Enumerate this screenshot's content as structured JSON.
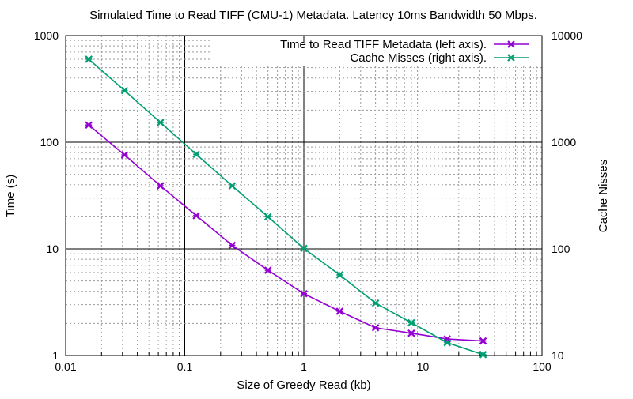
{
  "chart_data": {
    "type": "line",
    "title": "Simulated Time to Read TIFF (CMU-1) Metadata. Latency 10ms Bandwidth 50 Mbps.",
    "xlabel": "Size of Greedy Read (kb)",
    "ylabel": "Time (s)",
    "y2label": "Cache Nisses",
    "xscale": "log",
    "yscale": "log",
    "y2scale": "log",
    "xlim": [
      0.01,
      100
    ],
    "ylim": [
      1,
      1000
    ],
    "y2lim": [
      10,
      10000
    ],
    "grid": true,
    "legend_position": "top-right",
    "x_ticks": [
      "0.01",
      "0.1",
      "1",
      "10",
      "100"
    ],
    "y_ticks": [
      "1",
      "10",
      "100",
      "1000"
    ],
    "y2_ticks": [
      "10",
      "100",
      "1000",
      "10000"
    ],
    "x": [
      0.015625,
      0.03125,
      0.0625,
      0.125,
      0.25,
      0.5,
      1,
      2,
      4,
      8,
      16,
      32
    ],
    "series": [
      {
        "name": "Time to Read TIFF Metadata (left axis).",
        "axis": "left",
        "color": "#9400d3",
        "values": [
          145,
          76,
          39,
          20.5,
          10.8,
          6.3,
          3.8,
          2.6,
          1.82,
          1.62,
          1.43,
          1.37
        ]
      },
      {
        "name": "Cache Misses (right axis).",
        "axis": "right",
        "color": "#009e73",
        "values": [
          6000,
          3050,
          1530,
          770,
          390,
          200,
          101,
          57,
          31,
          20.3,
          13.2,
          10.2
        ]
      }
    ]
  }
}
